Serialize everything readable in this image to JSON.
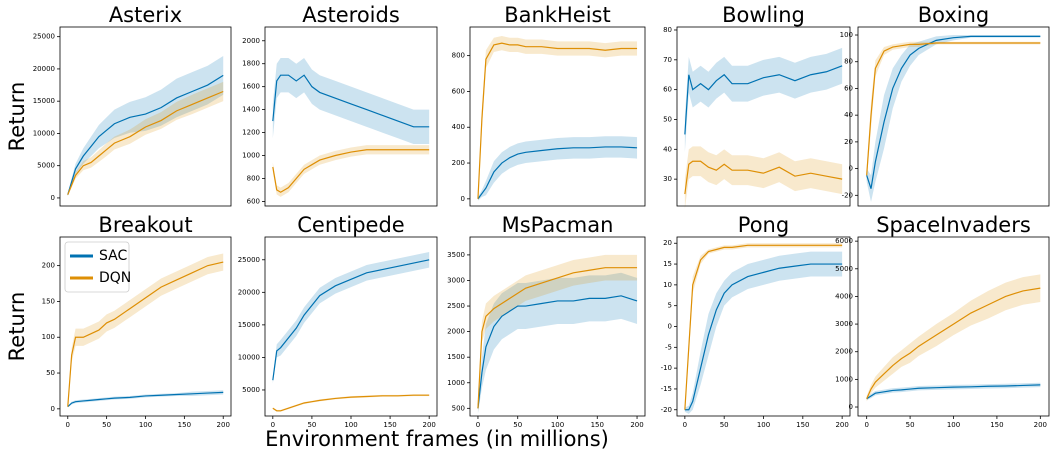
{
  "chart_data": [
    {
      "type": "line",
      "title": "Asterix",
      "ylabel": "Return",
      "x": [
        0,
        5,
        10,
        20,
        30,
        40,
        50,
        60,
        80,
        100,
        120,
        140,
        160,
        180,
        200
      ],
      "xlim": [
        -10,
        210
      ],
      "ylim": [
        -1250,
        26500
      ],
      "yticks": [
        0,
        5000,
        10000,
        15000,
        20000,
        25000
      ],
      "series": [
        {
          "color": "#0072b2",
          "values": [
            500,
            2500,
            4500,
            6500,
            8000,
            9500,
            10500,
            11500,
            12500,
            13000,
            14000,
            15500,
            16500,
            17500,
            19000
          ],
          "err": [
            200,
            600,
            800,
            1200,
            1500,
            1800,
            2000,
            2200,
            2400,
            2600,
            2800,
            3000,
            3000,
            3000,
            3000
          ]
        },
        {
          "color": "#de8f05",
          "values": [
            500,
            2000,
            3500,
            5000,
            5500,
            6500,
            7500,
            8500,
            9500,
            11000,
            12000,
            13500,
            14500,
            15500,
            16500
          ],
          "err": [
            200,
            400,
            500,
            700,
            800,
            900,
            1000,
            1000,
            1100,
            1200,
            1300,
            1400,
            1500,
            1500,
            1500
          ]
        }
      ]
    },
    {
      "type": "line",
      "title": "Asteroids",
      "x": [
        0,
        5,
        10,
        20,
        30,
        40,
        50,
        60,
        80,
        100,
        120,
        140,
        160,
        180,
        200
      ],
      "xlim": [
        -10,
        210
      ],
      "ylim": [
        560,
        2120
      ],
      "yticks": [
        600,
        800,
        1000,
        1200,
        1400,
        1600,
        1800,
        2000
      ],
      "series": [
        {
          "color": "#0072b2",
          "values": [
            1300,
            1650,
            1700,
            1700,
            1650,
            1700,
            1600,
            1550,
            1500,
            1450,
            1400,
            1350,
            1300,
            1250,
            1250
          ],
          "err": [
            150,
            150,
            150,
            150,
            150,
            150,
            150,
            150,
            150,
            150,
            150,
            150,
            150,
            150,
            150
          ]
        },
        {
          "color": "#de8f05",
          "values": [
            900,
            700,
            680,
            720,
            800,
            880,
            920,
            960,
            1000,
            1030,
            1050,
            1050,
            1050,
            1050,
            1050
          ],
          "err": [
            40,
            40,
            40,
            40,
            40,
            40,
            40,
            40,
            40,
            40,
            40,
            40,
            40,
            40,
            40
          ]
        }
      ]
    },
    {
      "type": "line",
      "title": "BankHeist",
      "x": [
        0,
        5,
        10,
        20,
        30,
        40,
        50,
        60,
        80,
        100,
        120,
        140,
        160,
        180,
        200
      ],
      "xlim": [
        -10,
        210
      ],
      "ylim": [
        -40,
        960
      ],
      "yticks": [
        0,
        200,
        400,
        600,
        800
      ],
      "series": [
        {
          "color": "#0072b2",
          "values": [
            0,
            30,
            60,
            150,
            200,
            230,
            250,
            260,
            270,
            280,
            285,
            285,
            290,
            290,
            285
          ],
          "err": [
            10,
            20,
            40,
            60,
            60,
            60,
            60,
            60,
            60,
            60,
            60,
            60,
            60,
            60,
            60
          ]
        },
        {
          "color": "#de8f05",
          "values": [
            0,
            450,
            780,
            860,
            870,
            860,
            860,
            850,
            850,
            840,
            840,
            840,
            830,
            840,
            840
          ],
          "err": [
            10,
            60,
            50,
            40,
            40,
            40,
            40,
            40,
            40,
            40,
            40,
            40,
            40,
            40,
            40
          ]
        }
      ]
    },
    {
      "type": "line",
      "title": "Bowling",
      "x": [
        0,
        5,
        10,
        20,
        30,
        40,
        50,
        60,
        80,
        100,
        120,
        140,
        160,
        180,
        200
      ],
      "xlim": [
        -10,
        210
      ],
      "ylim": [
        21,
        81
      ],
      "yticks": [
        30,
        40,
        50,
        60,
        70,
        80
      ],
      "series": [
        {
          "color": "#0072b2",
          "values": [
            45,
            65,
            60,
            62,
            60,
            63,
            65,
            62,
            62,
            64,
            65,
            63,
            65,
            66,
            68
          ],
          "err": [
            6,
            6,
            6,
            6,
            6,
            6,
            6,
            6,
            6,
            6,
            6,
            6,
            6,
            6,
            6
          ]
        },
        {
          "color": "#de8f05",
          "values": [
            25,
            35,
            36,
            36,
            34,
            33,
            35,
            33,
            33,
            32,
            34,
            31,
            32,
            31,
            30
          ],
          "err": [
            5,
            5,
            5,
            5,
            5,
            5,
            5,
            5,
            5,
            5,
            5,
            5,
            5,
            5,
            5
          ]
        }
      ]
    },
    {
      "type": "line",
      "title": "Boxing",
      "x": [
        0,
        5,
        10,
        20,
        30,
        40,
        50,
        60,
        80,
        100,
        120,
        140,
        160,
        180,
        200
      ],
      "xlim": [
        -10,
        210
      ],
      "ylim": [
        -28,
        106
      ],
      "yticks": [
        -20,
        0,
        20,
        40,
        60,
        80,
        100
      ],
      "series": [
        {
          "color": "#0072b2",
          "values": [
            -5,
            -15,
            5,
            35,
            60,
            75,
            85,
            90,
            96,
            98,
            99,
            99,
            99,
            99,
            99
          ],
          "err": [
            5,
            10,
            15,
            20,
            15,
            10,
            8,
            5,
            3,
            2,
            1,
            1,
            1,
            1,
            1
          ]
        },
        {
          "color": "#de8f05",
          "values": [
            -5,
            40,
            75,
            88,
            91,
            92,
            93,
            93,
            94,
            94,
            94,
            94,
            94,
            94,
            94
          ],
          "err": [
            5,
            10,
            6,
            3,
            2,
            2,
            2,
            2,
            1,
            1,
            1,
            1,
            1,
            1,
            1
          ]
        }
      ]
    },
    {
      "type": "line",
      "title": "Breakout",
      "ylabel": "Return",
      "legend": "upper left",
      "x": [
        0,
        5,
        10,
        20,
        30,
        40,
        50,
        60,
        80,
        100,
        120,
        140,
        160,
        180,
        200
      ],
      "xlim": [
        -10,
        210
      ],
      "ylim": [
        -10,
        240
      ],
      "yticks": [
        0,
        50,
        100,
        150,
        200
      ],
      "xticks": [
        0,
        50,
        100,
        150,
        200
      ],
      "series": [
        {
          "name": "SAC",
          "color": "#0072b2",
          "values": [
            3,
            8,
            10,
            11,
            12,
            13,
            14,
            15,
            16,
            18,
            19,
            20,
            21,
            22,
            23
          ],
          "err": [
            1,
            2,
            2,
            2,
            2,
            2,
            2,
            2,
            2,
            2,
            2,
            2,
            3,
            3,
            3
          ]
        },
        {
          "name": "DQN",
          "color": "#de8f05",
          "values": [
            3,
            75,
            100,
            100,
            105,
            110,
            120,
            125,
            140,
            155,
            170,
            180,
            190,
            200,
            205
          ],
          "err": [
            2,
            10,
            12,
            12,
            12,
            12,
            12,
            12,
            12,
            12,
            12,
            12,
            12,
            12,
            12
          ]
        }
      ]
    },
    {
      "type": "line",
      "title": "Centipede",
      "x": [
        0,
        5,
        10,
        20,
        30,
        40,
        50,
        60,
        80,
        100,
        120,
        140,
        160,
        180,
        200
      ],
      "xlim": [
        -10,
        210
      ],
      "ylim": [
        1000,
        28500
      ],
      "yticks": [
        5000,
        10000,
        15000,
        20000,
        25000
      ],
      "xticks": [
        0,
        50,
        100,
        150,
        200
      ],
      "series": [
        {
          "color": "#0072b2",
          "values": [
            6500,
            11000,
            11500,
            13000,
            14500,
            16500,
            18000,
            19500,
            21000,
            22000,
            23000,
            23500,
            24000,
            24500,
            25000
          ],
          "err": [
            500,
            1000,
            1200,
            1200,
            1200,
            1200,
            1200,
            1200,
            1200,
            1200,
            1200,
            1200,
            1200,
            1200,
            1200
          ]
        },
        {
          "color": "#de8f05",
          "values": [
            2200,
            1800,
            1800,
            2200,
            2600,
            3000,
            3200,
            3400,
            3700,
            3900,
            4000,
            4100,
            4100,
            4200,
            4200
          ],
          "err": [
            150,
            150,
            150,
            150,
            150,
            150,
            150,
            150,
            150,
            150,
            150,
            150,
            150,
            150,
            150
          ]
        }
      ]
    },
    {
      "type": "line",
      "title": "MsPacman",
      "xlabel": "Environment frames (in millions)",
      "x": [
        0,
        5,
        10,
        20,
        30,
        40,
        50,
        60,
        80,
        100,
        120,
        140,
        160,
        180,
        200
      ],
      "xlim": [
        -10,
        210
      ],
      "ylim": [
        350,
        3850
      ],
      "yticks": [
        500,
        1000,
        1500,
        2000,
        2500,
        3000,
        3500
      ],
      "xticks": [
        0,
        50,
        100,
        150,
        200
      ],
      "series": [
        {
          "color": "#0072b2",
          "values": [
            500,
            1200,
            1700,
            2100,
            2300,
            2400,
            2500,
            2500,
            2550,
            2600,
            2600,
            2650,
            2650,
            2700,
            2600
          ],
          "err": [
            100,
            300,
            450,
            450,
            450,
            450,
            450,
            450,
            450,
            450,
            450,
            450,
            450,
            450,
            450
          ]
        },
        {
          "color": "#de8f05",
          "values": [
            500,
            2000,
            2300,
            2450,
            2550,
            2650,
            2750,
            2850,
            2950,
            3050,
            3150,
            3200,
            3250,
            3250,
            3250
          ],
          "err": [
            100,
            200,
            250,
            250,
            250,
            250,
            250,
            250,
            250,
            250,
            250,
            250,
            250,
            250,
            250
          ]
        }
      ]
    },
    {
      "type": "line",
      "title": "Pong",
      "x": [
        0,
        5,
        10,
        20,
        30,
        40,
        50,
        60,
        80,
        100,
        120,
        140,
        160,
        180,
        200
      ],
      "xlim": [
        -10,
        210
      ],
      "ylim": [
        -21.5,
        21.5
      ],
      "yticks": [
        -20,
        -15,
        -10,
        -5,
        0,
        5,
        10,
        15,
        20
      ],
      "xticks": [
        0,
        50,
        100,
        150,
        200
      ],
      "series": [
        {
          "color": "#0072b2",
          "values": [
            -20,
            -20,
            -18,
            -10,
            -2,
            4,
            8,
            10,
            12,
            13,
            14,
            14.5,
            15,
            15,
            15
          ],
          "err": [
            0.5,
            1,
            2,
            4,
            5,
            4,
            3,
            3,
            3,
            3,
            3,
            3,
            3,
            3,
            3
          ]
        },
        {
          "color": "#de8f05",
          "values": [
            -20,
            -5,
            10,
            16,
            18,
            18.5,
            19,
            19,
            19.5,
            19.5,
            19.5,
            19.5,
            19.5,
            19.5,
            19.5
          ],
          "err": [
            0.5,
            2,
            2,
            1,
            0.5,
            0.5,
            0.5,
            0.5,
            0.5,
            0.5,
            0.5,
            0.5,
            0.5,
            0.5,
            0.5
          ]
        }
      ]
    },
    {
      "type": "line",
      "title": "SpaceInvaders",
      "x": [
        0,
        5,
        10,
        20,
        30,
        40,
        50,
        60,
        80,
        100,
        120,
        140,
        160,
        180,
        200
      ],
      "xlim": [
        -10,
        210
      ],
      "ylim": [
        -325,
        6150
      ],
      "yticks": [
        0,
        1000,
        2000,
        3000,
        4000,
        5000,
        6000
      ],
      "xticks": [
        0,
        50,
        100,
        150,
        200
      ],
      "series": [
        {
          "color": "#0072b2",
          "values": [
            300,
            400,
            500,
            550,
            600,
            620,
            650,
            680,
            700,
            720,
            730,
            750,
            760,
            780,
            800
          ],
          "err": [
            50,
            80,
            80,
            80,
            80,
            80,
            80,
            80,
            80,
            80,
            80,
            80,
            80,
            80,
            80
          ]
        },
        {
          "color": "#de8f05",
          "values": [
            300,
            650,
            900,
            1200,
            1500,
            1750,
            1950,
            2200,
            2600,
            3000,
            3400,
            3700,
            4000,
            4200,
            4300
          ],
          "err": [
            100,
            150,
            200,
            250,
            300,
            300,
            350,
            350,
            400,
            400,
            450,
            500,
            500,
            500,
            500
          ]
        }
      ]
    }
  ]
}
